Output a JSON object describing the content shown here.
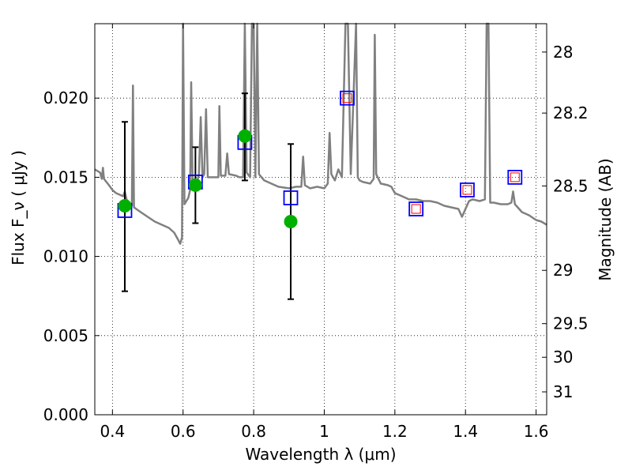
{
  "chart_data": {
    "type": "scatter",
    "xlabel": "Wavelength  λ (μm)",
    "ylabel": "Flux  F_ν  ( μJy )",
    "ylabel_right": "Magnitude (AB)",
    "xlim": [
      0.35,
      1.63
    ],
    "ylim": [
      0.0,
      0.0247
    ],
    "grid": true,
    "x_ticks": [
      0.4,
      0.6,
      0.8,
      1.0,
      1.2,
      1.4,
      1.6
    ],
    "x_tick_labels": [
      "0.4",
      "0.6",
      "0.8",
      "1",
      "1.2",
      "1.4",
      "1.6"
    ],
    "y_ticks": [
      0.0,
      0.005,
      0.01,
      0.015,
      0.02
    ],
    "y_tick_labels": [
      "0.000",
      "0.005",
      "0.010",
      "0.015",
      "0.020"
    ],
    "right_ticks": [
      {
        "mag": 28,
        "label": "28"
      },
      {
        "mag": 28.2,
        "label": "28.2"
      },
      {
        "mag": 28.5,
        "label": "28.5"
      },
      {
        "mag": 29,
        "label": "29"
      },
      {
        "mag": 29.5,
        "label": "29.5"
      },
      {
        "mag": 30,
        "label": "30"
      },
      {
        "mag": 31,
        "label": "31"
      }
    ],
    "colors": {
      "model": "#808080",
      "observed": "#00b000",
      "errorbar": "#000000",
      "model_box": "#0000ff",
      "red_box": "#ff0000",
      "grid": "#000000"
    },
    "observed": [
      {
        "x": 0.435,
        "y": 0.0132,
        "err_low": 0.0078,
        "err_high": 0.0185
      },
      {
        "x": 0.635,
        "y": 0.0145,
        "err_low": 0.0121,
        "err_high": 0.0169
      },
      {
        "x": 0.775,
        "y": 0.0176,
        "err_low": 0.0148,
        "err_high": 0.0203
      },
      {
        "x": 0.905,
        "y": 0.0122,
        "err_low": 0.0073,
        "err_high": 0.0171
      }
    ],
    "model_boxes": [
      {
        "x": 0.435,
        "y": 0.0129
      },
      {
        "x": 0.635,
        "y": 0.0147
      },
      {
        "x": 0.775,
        "y": 0.0172
      },
      {
        "x": 0.905,
        "y": 0.0137
      },
      {
        "x": 1.065,
        "y": 0.02
      },
      {
        "x": 1.26,
        "y": 0.013
      },
      {
        "x": 1.405,
        "y": 0.0142
      },
      {
        "x": 1.54,
        "y": 0.015
      }
    ],
    "red_boxes": [
      {
        "x": 1.065,
        "y": 0.02
      },
      {
        "x": 1.26,
        "y": 0.013
      },
      {
        "x": 1.405,
        "y": 0.0142
      },
      {
        "x": 1.54,
        "y": 0.015
      }
    ],
    "model_spectrum": [
      [
        0.35,
        0.0155
      ],
      [
        0.365,
        0.0153
      ],
      [
        0.37,
        0.0149
      ],
      [
        0.373,
        0.0156
      ],
      [
        0.376,
        0.0149
      ],
      [
        0.39,
        0.0145
      ],
      [
        0.4,
        0.0142
      ],
      [
        0.41,
        0.014
      ],
      [
        0.42,
        0.0139
      ],
      [
        0.43,
        0.0138
      ],
      [
        0.435,
        0.0141
      ],
      [
        0.44,
        0.0136
      ],
      [
        0.445,
        0.0134
      ],
      [
        0.45,
        0.0133
      ],
      [
        0.455,
        0.0132
      ],
      [
        0.458,
        0.0208
      ],
      [
        0.461,
        0.0131
      ],
      [
        0.48,
        0.0128
      ],
      [
        0.5,
        0.0125
      ],
      [
        0.52,
        0.0122
      ],
      [
        0.54,
        0.012
      ],
      [
        0.56,
        0.0118
      ],
      [
        0.575,
        0.0115
      ],
      [
        0.585,
        0.0111
      ],
      [
        0.592,
        0.0108
      ],
      [
        0.597,
        0.0112
      ],
      [
        0.6,
        0.025
      ],
      [
        0.604,
        0.0133
      ],
      [
        0.615,
        0.0137
      ],
      [
        0.62,
        0.0142
      ],
      [
        0.623,
        0.021
      ],
      [
        0.627,
        0.0145
      ],
      [
        0.64,
        0.0147
      ],
      [
        0.645,
        0.0152
      ],
      [
        0.65,
        0.0188
      ],
      [
        0.655,
        0.015
      ],
      [
        0.66,
        0.0152
      ],
      [
        0.665,
        0.0193
      ],
      [
        0.67,
        0.015
      ],
      [
        0.69,
        0.015
      ],
      [
        0.7,
        0.015
      ],
      [
        0.703,
        0.0195
      ],
      [
        0.707,
        0.0151
      ],
      [
        0.72,
        0.0151
      ],
      [
        0.725,
        0.0165
      ],
      [
        0.73,
        0.0152
      ],
      [
        0.75,
        0.0151
      ],
      [
        0.76,
        0.015
      ],
      [
        0.77,
        0.015
      ],
      [
        0.775,
        0.025
      ],
      [
        0.78,
        0.0153
      ],
      [
        0.79,
        0.015
      ],
      [
        0.795,
        0.025
      ],
      [
        0.8,
        0.025
      ],
      [
        0.805,
        0.015
      ],
      [
        0.81,
        0.025
      ],
      [
        0.815,
        0.0152
      ],
      [
        0.83,
        0.0148
      ],
      [
        0.85,
        0.0146
      ],
      [
        0.87,
        0.0144
      ],
      [
        0.9,
        0.0143
      ],
      [
        0.92,
        0.0144
      ],
      [
        0.935,
        0.0144
      ],
      [
        0.94,
        0.0163
      ],
      [
        0.945,
        0.0145
      ],
      [
        0.96,
        0.0143
      ],
      [
        0.98,
        0.0144
      ],
      [
        1.0,
        0.0143
      ],
      [
        1.01,
        0.0146
      ],
      [
        1.015,
        0.0178
      ],
      [
        1.02,
        0.0152
      ],
      [
        1.03,
        0.0148
      ],
      [
        1.04,
        0.0155
      ],
      [
        1.05,
        0.015
      ],
      [
        1.06,
        0.025
      ],
      [
        1.067,
        0.025
      ],
      [
        1.075,
        0.0152
      ],
      [
        1.09,
        0.025
      ],
      [
        1.095,
        0.015
      ],
      [
        1.1,
        0.0148
      ],
      [
        1.11,
        0.0147
      ],
      [
        1.13,
        0.0146
      ],
      [
        1.14,
        0.0149
      ],
      [
        1.143,
        0.024
      ],
      [
        1.147,
        0.0152
      ],
      [
        1.16,
        0.0146
      ],
      [
        1.18,
        0.0145
      ],
      [
        1.19,
        0.0144
      ],
      [
        1.2,
        0.014
      ],
      [
        1.22,
        0.0138
      ],
      [
        1.24,
        0.0136
      ],
      [
        1.26,
        0.0136
      ],
      [
        1.28,
        0.0135
      ],
      [
        1.3,
        0.0135
      ],
      [
        1.32,
        0.0134
      ],
      [
        1.34,
        0.0132
      ],
      [
        1.36,
        0.0131
      ],
      [
        1.38,
        0.013
      ],
      [
        1.39,
        0.0125
      ],
      [
        1.4,
        0.013
      ],
      [
        1.41,
        0.0135
      ],
      [
        1.42,
        0.0136
      ],
      [
        1.44,
        0.0135
      ],
      [
        1.455,
        0.0136
      ],
      [
        1.46,
        0.025
      ],
      [
        1.465,
        0.025
      ],
      [
        1.47,
        0.0134
      ],
      [
        1.48,
        0.0134
      ],
      [
        1.5,
        0.0133
      ],
      [
        1.52,
        0.0133
      ],
      [
        1.53,
        0.0134
      ],
      [
        1.535,
        0.0141
      ],
      [
        1.54,
        0.0133
      ],
      [
        1.56,
        0.0128
      ],
      [
        1.58,
        0.0126
      ],
      [
        1.6,
        0.0123
      ],
      [
        1.615,
        0.0122
      ],
      [
        1.63,
        0.012
      ]
    ]
  }
}
